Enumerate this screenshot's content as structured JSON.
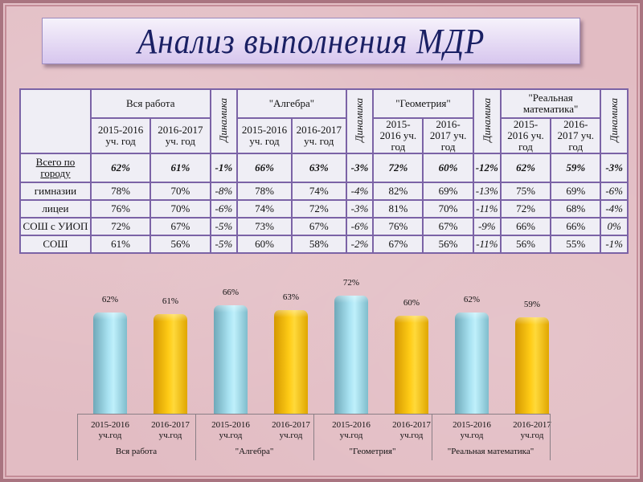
{
  "title": "Анализ выполнения МДР",
  "table": {
    "groups": [
      "Вся работа",
      "\"Алгебра\"",
      "\"Геометрия\"",
      "\"Реальная математика\""
    ],
    "dynamics_label": "Динамика",
    "year1": "2015-2016 уч. год",
    "year2": "2016-2017 уч. год",
    "rows": [
      {
        "label": "Всего по городу",
        "values": [
          "62%",
          "61%",
          "-1%",
          "66%",
          "63%",
          "-3%",
          "72%",
          "60%",
          "-12%",
          "62%",
          "59%",
          "-3%"
        ]
      },
      {
        "label": "гимназии",
        "values": [
          "78%",
          "70%",
          "-8%",
          "78%",
          "74%",
          "-4%",
          "82%",
          "69%",
          "-13%",
          "75%",
          "69%",
          "-6%"
        ]
      },
      {
        "label": "лицеи",
        "values": [
          "76%",
          "70%",
          "-6%",
          "74%",
          "72%",
          "-3%",
          "81%",
          "70%",
          "-11%",
          "72%",
          "68%",
          "-4%"
        ]
      },
      {
        "label": "СОШ с УИОП",
        "values": [
          "72%",
          "67%",
          "-5%",
          "73%",
          "67%",
          "-6%",
          "76%",
          "67%",
          "-9%",
          "66%",
          "66%",
          "0%"
        ]
      },
      {
        "label": "СОШ",
        "values": [
          "61%",
          "56%",
          "-5%",
          "60%",
          "58%",
          "-2%",
          "67%",
          "56%",
          "-11%",
          "56%",
          "55%",
          "-1%"
        ]
      }
    ]
  },
  "chart_data": {
    "type": "bar",
    "title": "",
    "categories": [
      "Вся работа",
      "\"Алгебра\"",
      "\"Геометрия\"",
      "\"Реальная математика\""
    ],
    "series": [
      {
        "name": "2015-2016 уч.год",
        "color": "#a9e3f2",
        "values": [
          62,
          66,
          72,
          62
        ]
      },
      {
        "name": "2016-2017 уч.год",
        "color": "#ffcc16",
        "values": [
          61,
          63,
          60,
          59
        ]
      }
    ],
    "labels": [
      "62%",
      "61%",
      "66%",
      "63%",
      "72%",
      "60%",
      "62%",
      "59%"
    ],
    "xlabel": "",
    "ylabel": "",
    "grid": false,
    "legend": "none",
    "year1_line1": "2015-2016",
    "year2_line1": "2016-2017",
    "year_line2": "уч.год"
  }
}
